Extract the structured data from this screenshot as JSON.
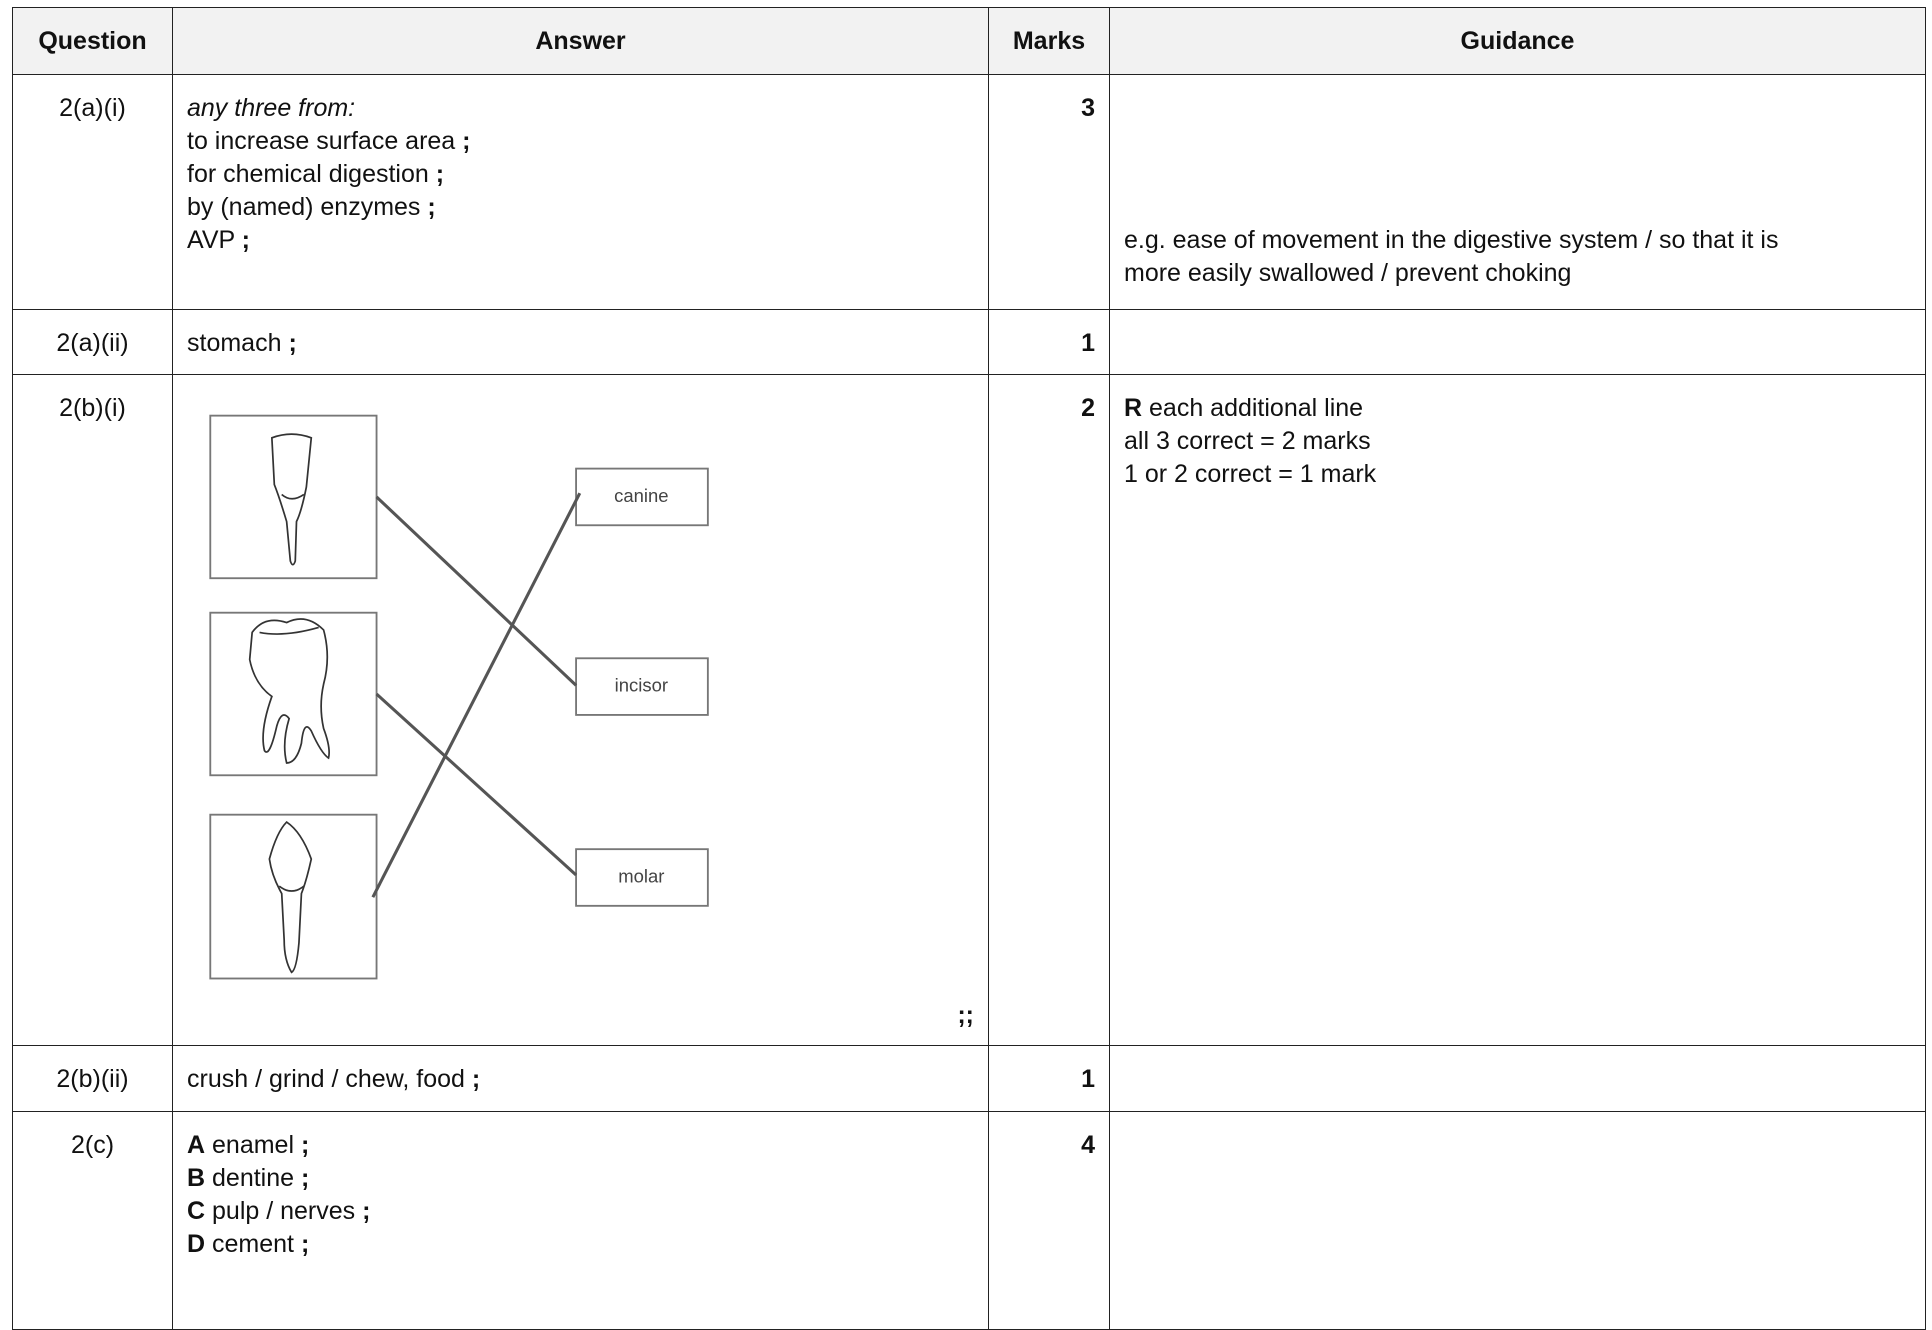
{
  "table": {
    "header": [
      "Question",
      "Answer",
      "Marks",
      "Guidance"
    ],
    "rows": [
      {
        "question": "2(a)(i)",
        "answer": [
          [
            {
              "text": "any three from:",
              "italic": true
            }
          ],
          [
            "to increase surface area ",
            {
              "text": ";",
              "bold": true
            }
          ],
          [
            "for chemical digestion ",
            {
              "text": ";",
              "bold": true
            }
          ],
          [
            "by (named) enzymes ",
            {
              "text": ";",
              "bold": true
            }
          ],
          [
            "AVP ",
            {
              "text": ";",
              "bold": true
            }
          ]
        ],
        "marks": "3",
        "guidance": [
          [
            "e.g. ease of movement in the digestive system / so that it is"
          ],
          [
            "more easily swallowed / prevent choking"
          ]
        ]
      },
      {
        "question": "2(a)(ii)",
        "answer": [
          [
            "stomach ",
            {
              "text": ";",
              "bold": true
            }
          ]
        ],
        "marks": "1",
        "guidance": []
      },
      {
        "question": "2(b)(i)",
        "diagram": {
          "labels": [
            "canine",
            "incisor",
            "molar"
          ],
          "note": ";;"
        },
        "marks": "2",
        "guidance": [
          [
            {
              "text": "R",
              "bold": true
            },
            " each additional line"
          ],
          [
            "all 3 correct = 2 marks"
          ],
          [
            "1 or 2 correct = 1 mark"
          ]
        ]
      },
      {
        "question": "2(b)(ii)",
        "answer": [
          [
            "crush / grind / chew, food ",
            {
              "text": ";",
              "bold": true
            }
          ]
        ],
        "marks": "1",
        "guidance": []
      },
      {
        "question": "2(c)",
        "answer": [
          [
            {
              "text": "A",
              "bold": true
            },
            " enamel ",
            {
              "text": ";",
              "bold": true
            }
          ],
          [
            {
              "text": "B",
              "bold": true
            },
            " dentine ",
            {
              "text": ";",
              "bold": true
            }
          ],
          [
            {
              "text": "C",
              "bold": true
            },
            " pulp / nerves ",
            {
              "text": ";",
              "bold": true
            }
          ],
          [
            {
              "text": "D",
              "bold": true
            },
            " cement ",
            {
              "text": ";",
              "bold": true
            }
          ]
        ],
        "marks": "4",
        "guidance": []
      }
    ]
  }
}
